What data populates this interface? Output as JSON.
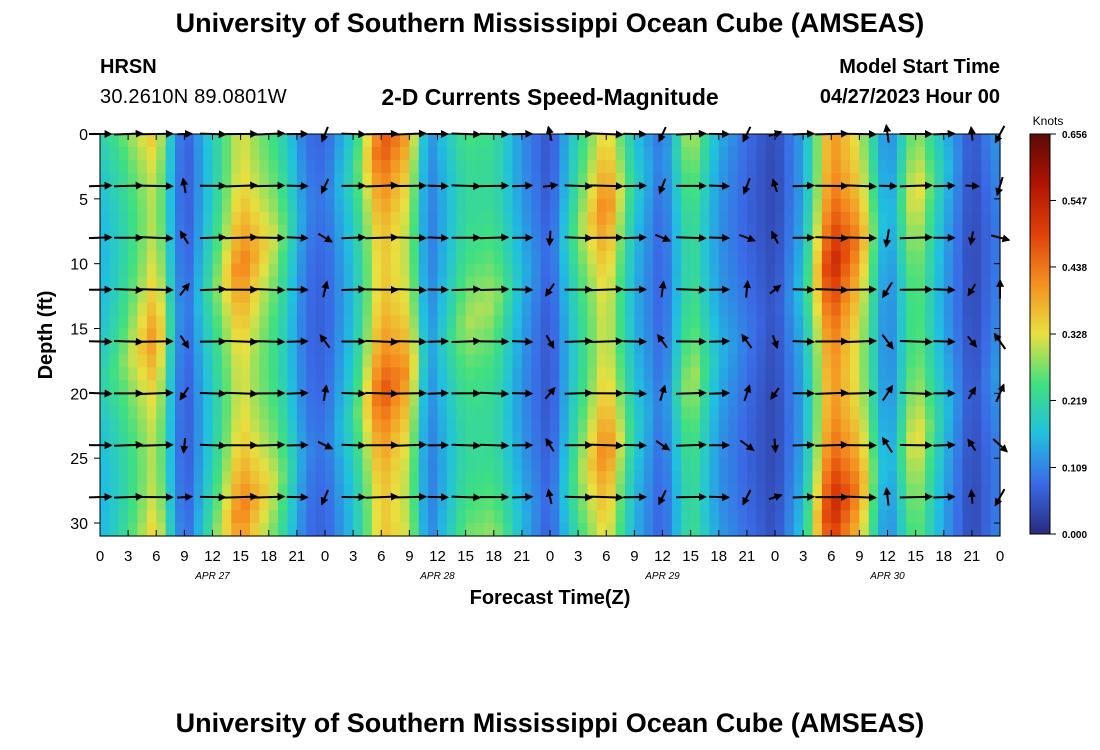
{
  "header": {
    "title": "University of Southern Mississippi Ocean Cube (AMSEAS)",
    "station": "HRSN",
    "coordinates": "30.2610N  89.0801W",
    "chart_title": "2-D Currents Speed-Magnitude",
    "model_start_label": "Model Start Time",
    "model_start_value": "04/27/2023 Hour 00"
  },
  "footer": {
    "title": "University of Southern Mississippi Ocean Cube (AMSEAS)"
  },
  "colorbar": {
    "unit": "Knots",
    "ticks": [
      0.656,
      0.547,
      0.438,
      0.328,
      0.219,
      0.109,
      0.0
    ],
    "tick_labels": [
      "0.656",
      "0.547",
      "0.438",
      "0.328",
      "0.219",
      "0.109",
      "0.000"
    ],
    "colors": [
      "#5a0a0a",
      "#b01400",
      "#e0400a",
      "#f59020",
      "#e8e040",
      "#40e080",
      "#20c0e0",
      "#3a6ae6",
      "#2a2a80"
    ]
  },
  "chart_data": {
    "type": "heatmap",
    "title": "2-D Currents Speed-Magnitude",
    "xlabel": "Forecast Time(Z)",
    "ylabel": "Depth (ft)",
    "zlabel": "Knots",
    "xlim": [
      0,
      96
    ],
    "ylim": [
      31,
      0
    ],
    "x_ticks": [
      0,
      3,
      6,
      9,
      12,
      15,
      18,
      21,
      24,
      27,
      30,
      33,
      36,
      39,
      42,
      45,
      48,
      51,
      54,
      57,
      60,
      63,
      66,
      69,
      72,
      75,
      78,
      81,
      84,
      87,
      90,
      93,
      96
    ],
    "x_tick_labels": [
      "0",
      "3",
      "6",
      "9",
      "12",
      "15",
      "18",
      "21",
      "0",
      "3",
      "6",
      "9",
      "12",
      "15",
      "18",
      "21",
      "0",
      "3",
      "6",
      "9",
      "12",
      "15",
      "18",
      "21",
      "0",
      "3",
      "6",
      "9",
      "12",
      "15",
      "18",
      "21",
      "0"
    ],
    "y_ticks": [
      0,
      5,
      10,
      15,
      20,
      25,
      30
    ],
    "y_tick_labels": [
      "0",
      "5",
      "10",
      "15",
      "20",
      "25",
      "30"
    ],
    "date_labels": [
      {
        "text": "APR 27",
        "hour": 12
      },
      {
        "text": "APR 28",
        "hour": 36
      },
      {
        "text": "APR 29",
        "hour": 60
      },
      {
        "text": "APR 30",
        "hour": 84
      }
    ],
    "speed_range": [
      0.0,
      0.656
    ],
    "speed_by_hour": [
      {
        "hour": 0,
        "speed": 0.2
      },
      {
        "hour": 2,
        "speed": 0.26
      },
      {
        "hour": 6,
        "speed": 0.42
      },
      {
        "hour": 7.5,
        "speed": 0.22
      },
      {
        "hour": 9,
        "speed": 0.07
      },
      {
        "hour": 10.5,
        "speed": 0.16
      },
      {
        "hour": 15,
        "speed": 0.44
      },
      {
        "hour": 19,
        "speed": 0.3
      },
      {
        "hour": 22,
        "speed": 0.11
      },
      {
        "hour": 24,
        "speed": 0.09
      },
      {
        "hour": 27,
        "speed": 0.22
      },
      {
        "hour": 30,
        "speed": 0.48
      },
      {
        "hour": 33,
        "speed": 0.4
      },
      {
        "hour": 35,
        "speed": 0.12
      },
      {
        "hour": 39,
        "speed": 0.3
      },
      {
        "hour": 42,
        "speed": 0.3
      },
      {
        "hour": 45,
        "speed": 0.16
      },
      {
        "hour": 48,
        "speed": 0.07
      },
      {
        "hour": 51,
        "speed": 0.28
      },
      {
        "hour": 54,
        "speed": 0.44
      },
      {
        "hour": 57,
        "speed": 0.2
      },
      {
        "hour": 60,
        "speed": 0.09
      },
      {
        "hour": 63,
        "speed": 0.32
      },
      {
        "hour": 66,
        "speed": 0.16
      },
      {
        "hour": 69,
        "speed": 0.1
      },
      {
        "hour": 72,
        "speed": 0.05
      },
      {
        "hour": 75,
        "speed": 0.18
      },
      {
        "hour": 78,
        "speed": 0.55
      },
      {
        "hour": 81,
        "speed": 0.42
      },
      {
        "hour": 84,
        "speed": 0.12
      },
      {
        "hour": 87,
        "speed": 0.36
      },
      {
        "hour": 90,
        "speed": 0.18
      },
      {
        "hour": 93,
        "speed": 0.05
      },
      {
        "hour": 96,
        "speed": 0.14
      }
    ],
    "vector_depths_ft": [
      0,
      4,
      8,
      12,
      16,
      20,
      24,
      28
    ],
    "vector_hours": [
      0,
      3,
      6,
      9,
      12,
      15,
      18,
      21,
      24,
      27,
      30,
      33,
      36,
      39,
      42,
      45,
      48,
      51,
      54,
      57,
      60,
      63,
      66,
      69,
      72,
      75,
      78,
      81,
      84,
      87,
      90,
      93,
      96
    ],
    "vector_note": "arrows show current direction at each hour/depth; predominantly eastward"
  },
  "axes": {
    "xlabel": "Forecast Time(Z)",
    "ylabel": "Depth (ft)"
  }
}
